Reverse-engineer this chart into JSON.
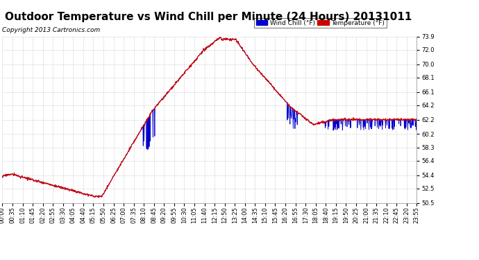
{
  "title": "Outdoor Temperature vs Wind Chill per Minute (24 Hours) 20131011",
  "copyright": "Copyright 2013 Cartronics.com",
  "legend_wind_chill": "Wind Chill (°F)",
  "legend_temperature": "Temperature (°F)",
  "ylim": [
    50.5,
    73.9
  ],
  "yticks": [
    50.5,
    52.5,
    54.4,
    56.4,
    58.3,
    60.2,
    62.2,
    64.2,
    66.1,
    68.1,
    70.0,
    72.0,
    73.9
  ],
  "xtick_labels": [
    "00:00",
    "00:35",
    "01:10",
    "01:45",
    "02:20",
    "02:55",
    "03:30",
    "04:05",
    "04:40",
    "05:15",
    "05:50",
    "06:25",
    "07:00",
    "07:35",
    "08:10",
    "08:45",
    "09:20",
    "09:55",
    "10:30",
    "11:05",
    "11:40",
    "12:15",
    "12:50",
    "13:25",
    "14:00",
    "14:35",
    "15:10",
    "15:45",
    "16:20",
    "16:55",
    "17:30",
    "18:05",
    "18:40",
    "19:15",
    "19:50",
    "20:25",
    "21:00",
    "21:35",
    "22:10",
    "22:45",
    "23:20",
    "23:55"
  ],
  "temp_color": "#cc0000",
  "wind_color": "#0000cc",
  "bg_color": "#ffffff",
  "grid_color": "#bbbbbb",
  "title_fontsize": 11,
  "tick_fontsize": 6,
  "copyright_fontsize": 6.5
}
